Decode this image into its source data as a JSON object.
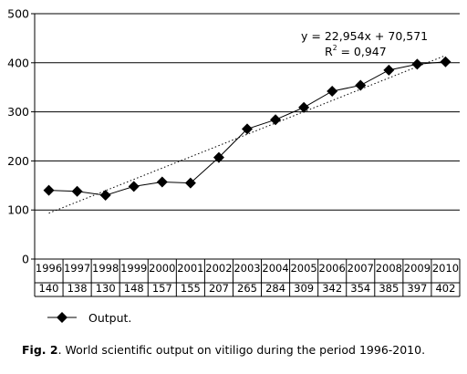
{
  "chart_data": {
    "type": "line",
    "categories": [
      "1996",
      "1997",
      "1998",
      "1999",
      "2000",
      "2001",
      "2002",
      "2003",
      "2004",
      "2005",
      "2006",
      "2007",
      "2008",
      "2009",
      "2010"
    ],
    "series": [
      {
        "name": "Output.",
        "values": [
          140,
          138,
          130,
          148,
          157,
          155,
          207,
          265,
          284,
          309,
          342,
          354,
          385,
          397,
          402
        ],
        "color": "#000000",
        "marker": "diamond"
      }
    ],
    "trendline": {
      "style": "dotted",
      "slope": 22.954,
      "intercept": 70.571,
      "equation": "y = 22,954x  + 70,571",
      "r2_label": "R",
      "r2_exponent": "2",
      "r2_value": "= 0,947"
    },
    "ylim": [
      0,
      500
    ],
    "yticks": [
      "0",
      "100",
      "200",
      "300",
      "400",
      "500"
    ],
    "grid": true,
    "legend": "bottom-left",
    "table_below": true
  },
  "caption": {
    "label": "Fig. 2",
    "text": ". World scientific output on vitiligo  during the period 1996-2010."
  }
}
